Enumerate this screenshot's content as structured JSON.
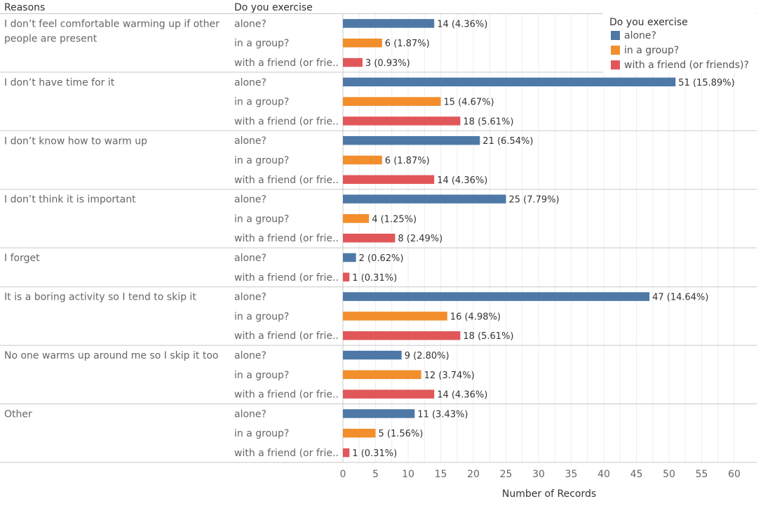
{
  "chart_data": {
    "type": "bar",
    "orientation": "horizontal",
    "row_header": "Reasons",
    "sub_header": "Do you exercise",
    "xlabel": "Number of Records",
    "xlim": [
      0,
      62
    ],
    "xticks": [
      0,
      5,
      10,
      15,
      20,
      25,
      30,
      35,
      40,
      45,
      50,
      55,
      60
    ],
    "grid": true,
    "legend": {
      "title": "Do you exercise",
      "placement": "top-right",
      "items": [
        {
          "label": "alone?",
          "color": "#4e79a7"
        },
        {
          "label": "in a group?",
          "color": "#f28e2b"
        },
        {
          "label": "with a friend (or friends)?",
          "color": "#e15759"
        }
      ]
    },
    "series_colors": {
      "alone?": "#4e79a7",
      "in a group?": "#f28e2b",
      "with a friend (or friends)?": "#e15759"
    },
    "groups": [
      {
        "reason_lines": [
          "I don’t feel comfortable warming up if other",
          "people are present"
        ],
        "bars": [
          {
            "series": "alone?",
            "sub_label": "alone?",
            "value": 14,
            "label": "14 (4.36%)"
          },
          {
            "series": "in a group?",
            "sub_label": "in a group?",
            "value": 6,
            "label": "6 (1.87%)"
          },
          {
            "series": "with a friend (or friends)?",
            "sub_label": "with a friend (or frie..",
            "value": 3,
            "label": "3 (0.93%)"
          }
        ]
      },
      {
        "reason_lines": [
          "I don’t have time for it"
        ],
        "bars": [
          {
            "series": "alone?",
            "sub_label": "alone?",
            "value": 51,
            "label": "51 (15.89%)"
          },
          {
            "series": "in a group?",
            "sub_label": "in a group?",
            "value": 15,
            "label": "15 (4.67%)"
          },
          {
            "series": "with a friend (or friends)?",
            "sub_label": "with a friend (or frie..",
            "value": 18,
            "label": "18 (5.61%)"
          }
        ]
      },
      {
        "reason_lines": [
          "I don’t know how to warm up"
        ],
        "bars": [
          {
            "series": "alone?",
            "sub_label": "alone?",
            "value": 21,
            "label": "21 (6.54%)"
          },
          {
            "series": "in a group?",
            "sub_label": "in a group?",
            "value": 6,
            "label": "6 (1.87%)"
          },
          {
            "series": "with a friend (or friends)?",
            "sub_label": "with a friend (or frie..",
            "value": 14,
            "label": "14 (4.36%)"
          }
        ]
      },
      {
        "reason_lines": [
          "I don’t think it is important"
        ],
        "bars": [
          {
            "series": "alone?",
            "sub_label": "alone?",
            "value": 25,
            "label": "25 (7.79%)"
          },
          {
            "series": "in a group?",
            "sub_label": "in a group?",
            "value": 4,
            "label": "4 (1.25%)"
          },
          {
            "series": "with a friend (or friends)?",
            "sub_label": "with a friend (or frie..",
            "value": 8,
            "label": "8 (2.49%)"
          }
        ]
      },
      {
        "reason_lines": [
          "I forget"
        ],
        "bars": [
          {
            "series": "alone?",
            "sub_label": "alone?",
            "value": 2,
            "label": "2 (0.62%)"
          },
          {
            "series": "with a friend (or friends)?",
            "sub_label": "with a friend (or frie..",
            "value": 1,
            "label": "1 (0.31%)"
          }
        ]
      },
      {
        "reason_lines": [
          "It is a boring activity so I tend to skip it"
        ],
        "bars": [
          {
            "series": "alone?",
            "sub_label": "alone?",
            "value": 47,
            "label": "47 (14.64%)"
          },
          {
            "series": "in a group?",
            "sub_label": "in a group?",
            "value": 16,
            "label": "16 (4.98%)"
          },
          {
            "series": "with a friend (or friends)?",
            "sub_label": "with a friend (or frie..",
            "value": 18,
            "label": "18 (5.61%)"
          }
        ]
      },
      {
        "reason_lines": [
          "No one warms up around me so I skip it too"
        ],
        "bars": [
          {
            "series": "alone?",
            "sub_label": "alone?",
            "value": 9,
            "label": "9 (2.80%)"
          },
          {
            "series": "in a group?",
            "sub_label": "in a group?",
            "value": 12,
            "label": "12 (3.74%)"
          },
          {
            "series": "with a friend (or friends)?",
            "sub_label": "with a friend (or frie..",
            "value": 14,
            "label": "14 (4.36%)"
          }
        ]
      },
      {
        "reason_lines": [
          "Other"
        ],
        "bars": [
          {
            "series": "alone?",
            "sub_label": "alone?",
            "value": 11,
            "label": "11 (3.43%)"
          },
          {
            "series": "in a group?",
            "sub_label": "in a group?",
            "value": 5,
            "label": "5 (1.56%)"
          },
          {
            "series": "with a friend (or friends)?",
            "sub_label": "with a friend (or frie..",
            "value": 1,
            "label": "1 (0.31%)"
          }
        ]
      }
    ]
  }
}
